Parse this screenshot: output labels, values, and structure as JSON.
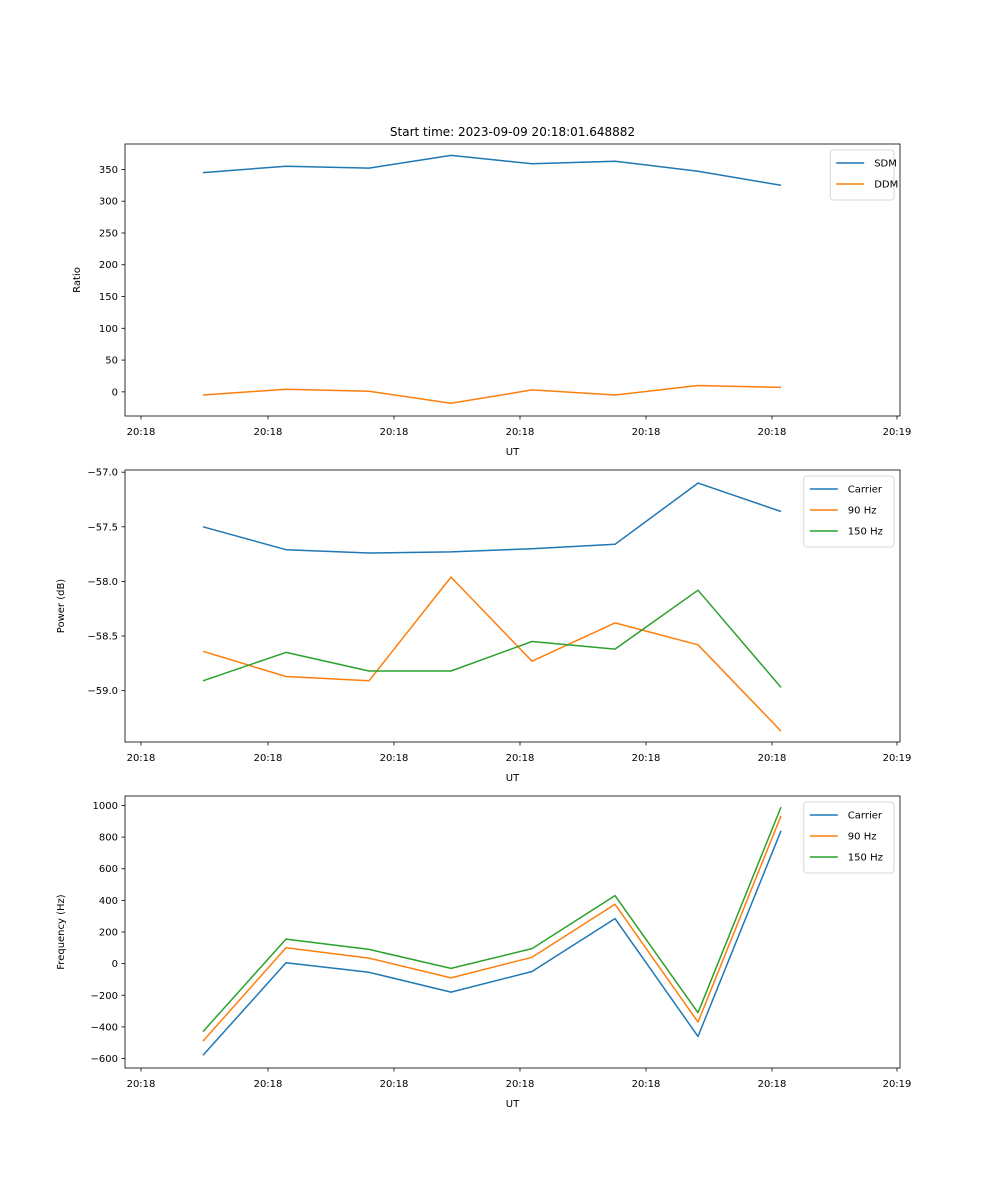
{
  "chart_data": [
    {
      "type": "line",
      "title": "Start time: 2023-09-09 20:18:01.648882",
      "xlabel": "UT",
      "ylabel": "Ratio",
      "x": [
        0,
        1,
        2,
        3,
        4,
        5,
        6,
        7
      ],
      "xlim": [
        -0.97,
        5.54
      ],
      "xticks": [
        -0.97,
        0.0,
        0.98,
        1.96,
        2.94,
        3.93,
        4.91,
        5.54
      ],
      "xtick_labels": [
        "20:18",
        "20:18",
        "20:18",
        "20:18",
        "20:18",
        "20:18",
        "20:18",
        "20:19"
      ],
      "ylim": [
        -38,
        390
      ],
      "yticks": [
        0,
        50,
        100,
        150,
        200,
        250,
        300,
        350
      ],
      "ytick_labels": [
        "0",
        "50",
        "100",
        "150",
        "200",
        "250",
        "300",
        "350"
      ],
      "legend_position": "top-right",
      "series": [
        {
          "name": "SDM",
          "color": "#1f77b4",
          "values": [
            345,
            355,
            352,
            372,
            359,
            363,
            347,
            325
          ]
        },
        {
          "name": "DDM",
          "color": "#ff7f0e",
          "values": [
            -5,
            4,
            1,
            -18,
            3,
            -5,
            10,
            7
          ]
        }
      ]
    },
    {
      "type": "line",
      "title": "",
      "xlabel": "UT",
      "ylabel": "Power (dB)",
      "x": [
        0,
        1,
        2,
        3,
        4,
        5,
        6,
        7
      ],
      "xlim": [
        -0.97,
        5.54
      ],
      "xticks": [
        -0.97,
        0.0,
        0.98,
        1.96,
        2.94,
        3.93,
        4.91,
        5.54
      ],
      "xtick_labels": [
        "20:18",
        "20:18",
        "20:18",
        "20:18",
        "20:18",
        "20:18",
        "20:18",
        "20:19"
      ],
      "ylim": [
        -59.47,
        -56.98
      ],
      "yticks": [
        -59.0,
        -58.5,
        -58.0,
        -57.5,
        -57.0
      ],
      "ytick_labels": [
        "−59.0",
        "−58.5",
        "−58.0",
        "−57.5",
        "−57.0"
      ],
      "legend_position": "top-right",
      "series": [
        {
          "name": "Carrier",
          "color": "#1f77b4",
          "values": [
            -57.5,
            -57.71,
            -57.74,
            -57.73,
            -57.7,
            -57.66,
            -57.1,
            -57.36
          ]
        },
        {
          "name": "90 Hz",
          "color": "#ff7f0e",
          "values": [
            -58.64,
            -58.87,
            -58.91,
            -57.96,
            -58.73,
            -58.38,
            -58.58,
            -59.37
          ]
        },
        {
          "name": "150 Hz",
          "color": "#2ca02c",
          "values": [
            -58.91,
            -58.65,
            -58.82,
            -58.82,
            -58.55,
            -58.62,
            -58.08,
            -58.97
          ]
        }
      ]
    },
    {
      "type": "line",
      "title": "",
      "xlabel": "UT",
      "ylabel": "Frequency (Hz)",
      "x": [
        0,
        1,
        2,
        3,
        4,
        5,
        6,
        7
      ],
      "xlim": [
        -0.97,
        5.54
      ],
      "xticks": [
        -0.97,
        0.0,
        0.98,
        1.96,
        2.94,
        3.93,
        4.91,
        5.54
      ],
      "xtick_labels": [
        "20:18",
        "20:18",
        "20:18",
        "20:18",
        "20:18",
        "20:18",
        "20:18",
        "20:19"
      ],
      "ylim": [
        -660,
        1060
      ],
      "yticks": [
        -600,
        -400,
        -200,
        0,
        200,
        400,
        600,
        800,
        1000
      ],
      "ytick_labels": [
        "−600",
        "−400",
        "−200",
        "0",
        "200",
        "400",
        "600",
        "800",
        "1000"
      ],
      "legend_position": "top-right",
      "series": [
        {
          "name": "Carrier",
          "color": "#1f77b4",
          "values": [
            -580,
            5,
            -55,
            -180,
            -50,
            285,
            -460,
            840
          ]
        },
        {
          "name": "90 Hz",
          "color": "#ff7f0e",
          "values": [
            -490,
            100,
            35,
            -90,
            40,
            375,
            -370,
            935
          ]
        },
        {
          "name": "150 Hz",
          "color": "#2ca02c",
          "values": [
            -430,
            155,
            90,
            -30,
            95,
            430,
            -310,
            990
          ]
        }
      ]
    }
  ]
}
